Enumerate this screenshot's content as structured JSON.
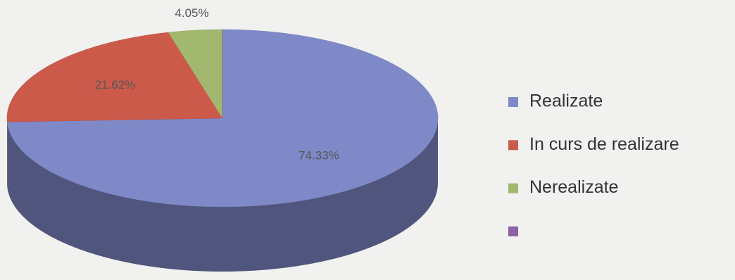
{
  "chart_data": {
    "type": "pie",
    "is_3d": true,
    "categories": [
      "Realizate",
      "In curs de realizare",
      "Nerealizate",
      null
    ],
    "values": [
      74.33,
      21.62,
      4.05,
      0
    ],
    "value_labels": [
      "74.33%",
      "21.62%",
      "4.05%",
      null
    ],
    "colors": [
      "#7f89c8",
      "#cc5a4b",
      "#a3b86f",
      "#8b62a3"
    ],
    "start_angle": 90,
    "direction": "clockwise",
    "legend": "right"
  }
}
